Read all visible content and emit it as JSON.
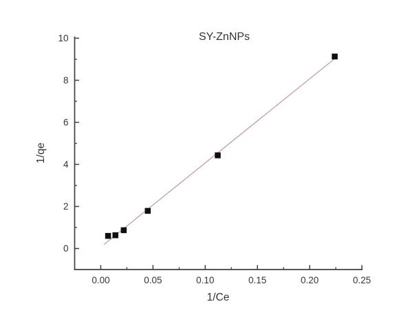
{
  "chart_data": {
    "type": "scatter",
    "title": "SY-ZnNPs",
    "xlabel": "1/Ce",
    "ylabel": "1/qe",
    "xlim": [
      -0.025,
      0.25
    ],
    "ylim": [
      -1,
      10.08
    ],
    "grid": false,
    "legend": "none",
    "background_color": "#ffffff",
    "axis_color": "#3f3f3f",
    "text_color": "#333333",
    "x_major_ticks": [
      {
        "value": 0.0,
        "label": "0.00"
      },
      {
        "value": 0.05,
        "label": "0.05"
      },
      {
        "value": 0.1,
        "label": "0.10"
      },
      {
        "value": 0.15,
        "label": "0.15"
      },
      {
        "value": 0.2,
        "label": "0.20"
      },
      {
        "value": 0.25,
        "label": "0.25"
      }
    ],
    "x_minor_ticks": [
      0.025,
      0.075,
      0.125,
      0.175,
      0.225
    ],
    "y_major_ticks": [
      {
        "value": 0,
        "label": "0"
      },
      {
        "value": 2,
        "label": "2"
      },
      {
        "value": 4,
        "label": "4"
      },
      {
        "value": 6,
        "label": "6"
      },
      {
        "value": 8,
        "label": "8"
      },
      {
        "value": 10,
        "label": "10"
      }
    ],
    "y_minor_ticks": [
      1,
      3,
      5,
      7,
      9
    ],
    "series": [
      {
        "name": "SY-ZnNPs",
        "marker": "square",
        "marker_color": "#101010",
        "points": [
          [
            0.007,
            0.6
          ],
          [
            0.014,
            0.63
          ],
          [
            0.022,
            0.87
          ],
          [
            0.045,
            1.79
          ],
          [
            0.112,
            4.43
          ],
          [
            0.224,
            9.13
          ]
        ]
      }
    ],
    "fit_line": {
      "slope": 40.0,
      "intercept": 0.07,
      "x_start": 0.003,
      "x_end": 0.2243,
      "color": "#c59597"
    }
  }
}
